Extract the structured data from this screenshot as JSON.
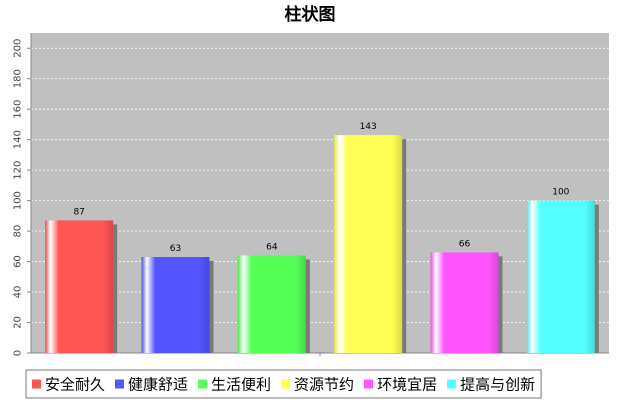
{
  "chart_data": {
    "type": "bar",
    "title": "柱状图",
    "xlabel": "",
    "ylabel": "",
    "categories": [
      "安全耐久",
      "健康舒适",
      "生活便利",
      "资源节约",
      "环境宜居",
      "提高与创新"
    ],
    "values": [
      87,
      63,
      64,
      143,
      66,
      100
    ],
    "colors": [
      "#ff5555",
      "#5555ff",
      "#55ff55",
      "#ffff55",
      "#ff55ff",
      "#55ffff"
    ],
    "ylim": [
      0,
      210
    ],
    "yticks": [
      0,
      20,
      40,
      60,
      80,
      100,
      120,
      140,
      160,
      180,
      200
    ],
    "grid": true,
    "plot_background": "#c0c0c0",
    "legend_position": "bottom"
  }
}
